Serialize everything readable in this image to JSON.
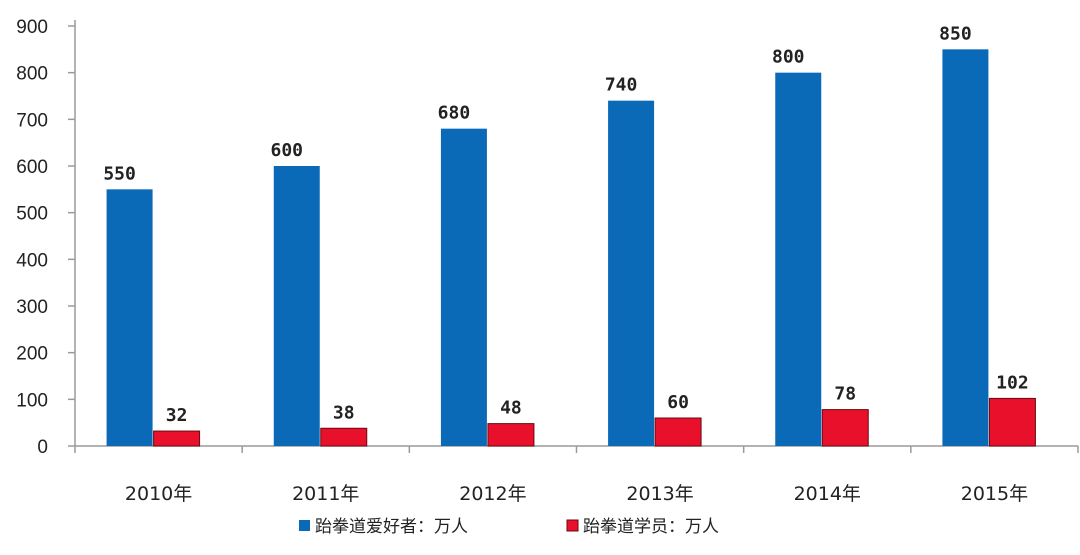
{
  "chart_data": {
    "type": "bar",
    "categories": [
      "2010年",
      "2011年",
      "2012年",
      "2013年",
      "2014年",
      "2015年"
    ],
    "series": [
      {
        "name": "跆拳道爱好者：万人",
        "color": "#0b6ab8",
        "values": [
          550,
          600,
          680,
          740,
          800,
          850
        ]
      },
      {
        "name": "跆拳道学员：万人",
        "color": "#e8102a",
        "values": [
          32,
          38,
          48,
          60,
          78,
          102
        ]
      }
    ],
    "yticks": [
      0,
      100,
      200,
      300,
      400,
      500,
      600,
      700,
      800,
      900
    ],
    "ylim": [
      0,
      900
    ],
    "grid": false,
    "legend_position": "bottom",
    "title": "",
    "xlabel": "",
    "ylabel": ""
  }
}
